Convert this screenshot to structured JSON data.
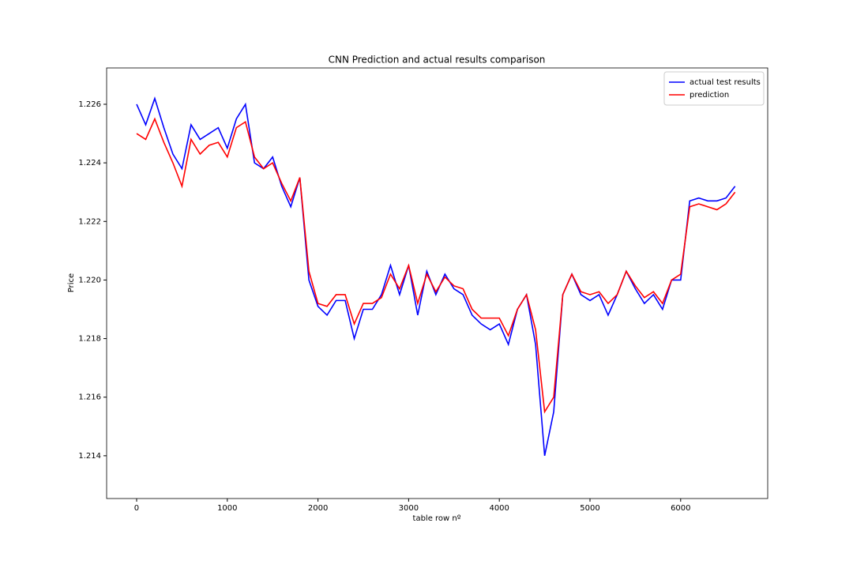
{
  "chart_data": {
    "type": "line",
    "title": "CNN Prediction and actual results comparison",
    "x_label": "table row nº",
    "y_label": "Price",
    "x": [
      0,
      100,
      200,
      300,
      400,
      500,
      600,
      700,
      800,
      900,
      1000,
      1100,
      1200,
      1300,
      1400,
      1500,
      1600,
      1700,
      1800,
      1900,
      2000,
      2100,
      2200,
      2300,
      2400,
      2500,
      2600,
      2700,
      2800,
      2900,
      3000,
      3100,
      3200,
      3300,
      3400,
      3500,
      3600,
      3700,
      3800,
      3900,
      4000,
      4100,
      4200,
      4300,
      4400,
      4500,
      4600,
      4700,
      4800,
      4900,
      5000,
      5100,
      5200,
      5300,
      5400,
      5500,
      5600,
      5700,
      5800,
      5900,
      6000,
      6100,
      6200,
      6300,
      6400,
      6500,
      6600
    ],
    "series": [
      {
        "name": "actual test results",
        "color": "#0000ff",
        "values": [
          1.226,
          1.2253,
          1.2262,
          1.2252,
          1.2243,
          1.2238,
          1.2253,
          1.2248,
          1.225,
          1.2252,
          1.2245,
          1.2255,
          1.226,
          1.224,
          1.2238,
          1.2242,
          1.2232,
          1.2225,
          1.2235,
          1.22,
          1.2191,
          1.2188,
          1.2193,
          1.2193,
          1.218,
          1.219,
          1.219,
          1.2195,
          1.2205,
          1.2195,
          1.2205,
          1.2188,
          1.2203,
          1.2195,
          1.2202,
          1.2197,
          1.2195,
          1.2188,
          1.2185,
          1.2183,
          1.2185,
          1.2178,
          1.219,
          1.2195,
          1.2178,
          1.214,
          1.2155,
          1.2195,
          1.2202,
          1.2195,
          1.2193,
          1.2195,
          1.2188,
          1.2195,
          1.2203,
          1.2197,
          1.2192,
          1.2195,
          1.219,
          1.22,
          1.22,
          1.2227,
          1.2228,
          1.2227,
          1.2227,
          1.2228,
          1.2232
        ]
      },
      {
        "name": "prediction",
        "color": "#ff0000",
        "values": [
          1.225,
          1.2248,
          1.2255,
          1.2247,
          1.224,
          1.2232,
          1.2248,
          1.2243,
          1.2246,
          1.2247,
          1.2242,
          1.2252,
          1.2254,
          1.2242,
          1.2238,
          1.224,
          1.2233,
          1.2227,
          1.2235,
          1.2203,
          1.2192,
          1.2191,
          1.2195,
          1.2195,
          1.2185,
          1.2192,
          1.2192,
          1.2194,
          1.2202,
          1.2197,
          1.2205,
          1.2192,
          1.2202,
          1.2196,
          1.2201,
          1.2198,
          1.2197,
          1.219,
          1.2187,
          1.2187,
          1.2187,
          1.2181,
          1.219,
          1.2195,
          1.2183,
          1.2155,
          1.216,
          1.2195,
          1.2202,
          1.2196,
          1.2195,
          1.2196,
          1.2192,
          1.2195,
          1.2203,
          1.2198,
          1.2194,
          1.2196,
          1.2192,
          1.22,
          1.2202,
          1.2225,
          1.2226,
          1.2225,
          1.2224,
          1.2226,
          1.223
        ]
      }
    ],
    "xlim": [
      -331,
      6960
    ],
    "ylim": [
      1.21254,
      1.22724
    ],
    "xticks": [
      0,
      1000,
      2000,
      3000,
      4000,
      5000,
      6000
    ],
    "yticks": [
      1.214,
      1.216,
      1.218,
      {
        "value": 1.22,
        "label": "1.220"
      },
      1.222,
      1.224,
      1.226
    ],
    "legend": "upper right"
  }
}
